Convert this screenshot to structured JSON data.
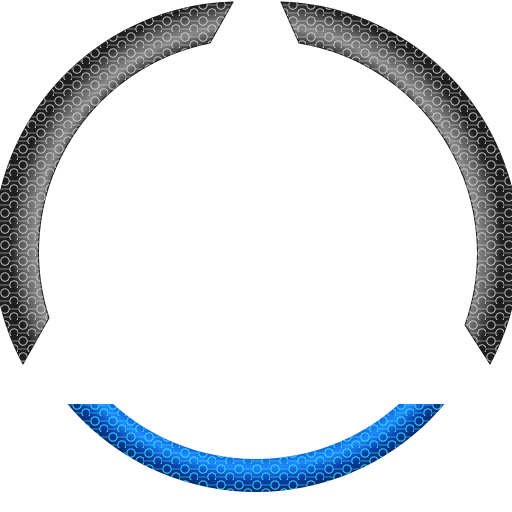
{
  "segments": [
    {
      "name": "ring-segment-left",
      "shade": "gray",
      "icon": "hex-ring-arc-icon"
    },
    {
      "name": "ring-segment-right",
      "shade": "gray",
      "icon": "hex-ring-arc-icon"
    },
    {
      "name": "ring-segment-bottom",
      "shade": "blue",
      "icon": "hex-ring-arc-icon",
      "state": "highlighted"
    }
  ],
  "colors": {
    "background": "#ffffff",
    "gray_light": "#9a9a9a",
    "gray_mid": "#5a5a5a",
    "gray_dark": "#1e1e1e",
    "gray_pattern": "#d8d8d8",
    "blue_light": "#1f8bff",
    "blue_mid": "#0a4fc4",
    "blue_dark": "#062a6e",
    "blue_pattern": "#34e0ff"
  }
}
